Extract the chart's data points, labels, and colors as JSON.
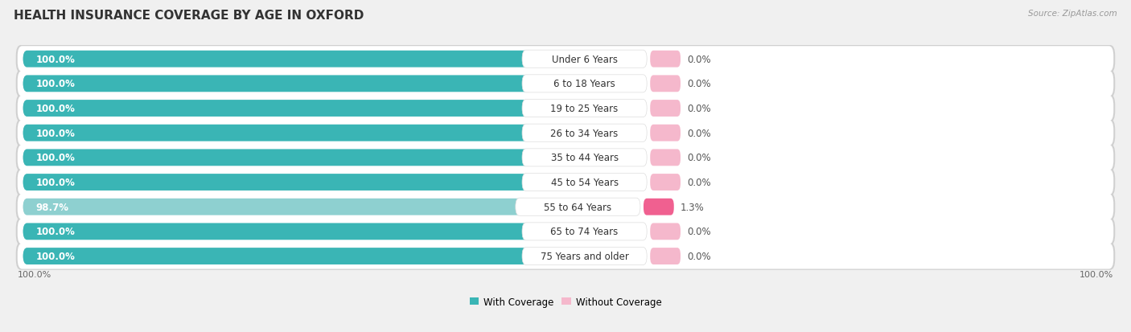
{
  "title": "HEALTH INSURANCE COVERAGE BY AGE IN OXFORD",
  "source": "Source: ZipAtlas.com",
  "categories": [
    "Under 6 Years",
    "6 to 18 Years",
    "19 to 25 Years",
    "26 to 34 Years",
    "35 to 44 Years",
    "45 to 54 Years",
    "55 to 64 Years",
    "65 to 74 Years",
    "75 Years and older"
  ],
  "with_coverage": [
    100.0,
    100.0,
    100.0,
    100.0,
    100.0,
    100.0,
    98.7,
    100.0,
    100.0
  ],
  "without_coverage": [
    0.0,
    0.0,
    0.0,
    0.0,
    0.0,
    0.0,
    1.3,
    0.0,
    0.0
  ],
  "color_with": "#3ab5b5",
  "color_without_dark": "#f06090",
  "color_without_light": "#f5b8cc",
  "color_with_light": "#8ed0d0",
  "bg_color": "#f0f0f0",
  "row_bg": "#e8e8e8",
  "bar_bg": "#ffffff",
  "title_fontsize": 11,
  "label_fontsize": 8.5,
  "tick_fontsize": 8,
  "legend_fontsize": 8.5
}
